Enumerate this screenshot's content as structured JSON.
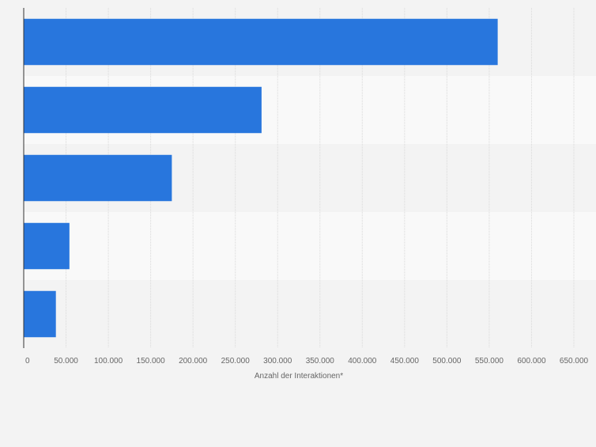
{
  "chart_data": {
    "type": "bar",
    "orientation": "horizontal",
    "title": "",
    "categories": [
      "",
      "",
      "",
      "",
      ""
    ],
    "values": [
      560000,
      281000,
      175000,
      54000,
      38000
    ],
    "xlabel": "Anzahl der Interaktionen*",
    "ylabel": "",
    "xlim": [
      0,
      650000
    ],
    "x_ticks": [
      0,
      50000,
      100000,
      150000,
      200000,
      250000,
      300000,
      350000,
      400000,
      450000,
      500000,
      550000,
      600000,
      650000
    ],
    "x_tick_labels": [
      "0",
      "50.000",
      "100.000",
      "150.000",
      "200.000",
      "250.000",
      "300.000",
      "350.000",
      "400.000",
      "450.000",
      "500.000",
      "550.000",
      "600.000",
      "650.000"
    ],
    "grid": true,
    "legend": "none",
    "colors": {
      "bar": "#2876dd",
      "band_dark": "#f3f3f3",
      "band_light": "#f9f9f9",
      "grid": "#d9d9d9",
      "axis": "#333333",
      "tick_text": "#666666",
      "label_text": "#666666"
    }
  }
}
